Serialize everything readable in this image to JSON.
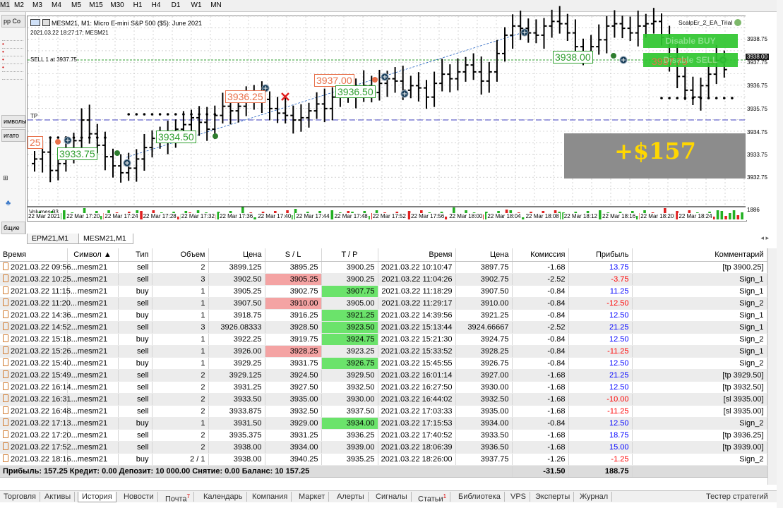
{
  "timeframes": [
    "M1",
    "M2",
    "M3",
    "M4",
    "M5",
    "M15",
    "M30",
    "H1",
    "H4",
    "D1",
    "W1",
    "MN"
  ],
  "active_timeframe": "M1",
  "left_panel": {
    "item1": "рр Со",
    "item2": "имволы",
    "item3": "игато",
    "item4": "бщие"
  },
  "chart": {
    "header": "MESM21, M1:  Micro E-mini S&P 500 ($5): June 2021",
    "datetime_line": "2021.03.22 18:27:17; MESM21",
    "sell_line_label": "SELL 1 at 3937.75",
    "tp_label": "TP",
    "ea_label": "ScalpEr_2_EA_Trial",
    "disable_buy_label": "Disable BUY",
    "disable_sell_label": "Disable SELL",
    "profit_overlay": "+$157",
    "volumes_label": "Volumes 93",
    "volume_max_label": "1886",
    "price_labels": [
      "3938.75",
      "3937.75",
      "3936.75",
      "3935.75",
      "3934.75",
      "3933.75",
      "3932.75"
    ],
    "current_price": "3938.00",
    "time_labels": [
      "22 Mar 2021",
      "22 Mar 17:20",
      "22 Mar 17:24",
      "22 Mar 17:28",
      "22 Mar 17:32",
      "22 Mar 17:36",
      "22 Mar 17:40",
      "22 Mar 17:44",
      "22 Mar 17:48",
      "22 Mar 17:52",
      "22 Mar 17:56",
      "22 Mar 18:00",
      "22 Mar 18:04",
      "22 Mar 18:08",
      "22 Mar 18:12",
      "22 Mar 18:16",
      "22 Mar 18:20",
      "22 Mar 18:24"
    ],
    "trade_labels": [
      {
        "text": "25",
        "color": "red"
      },
      {
        "text": "3933.75",
        "color": "green"
      },
      {
        "text": "3934.50",
        "color": "green"
      },
      {
        "text": "3936.25",
        "color": "red"
      },
      {
        "text": "3937.00",
        "color": "red"
      },
      {
        "text": "3936.50",
        "color": "green"
      },
      {
        "text": "3938.00",
        "color": "green"
      },
      {
        "text": "3937.75",
        "color": "red"
      }
    ]
  },
  "chart_tabs": [
    "EPM21,M1",
    "MESM21,M1"
  ],
  "active_chart_tab": "MESM21,M1",
  "history": {
    "columns": [
      "Время",
      "Символ",
      "Тип",
      "Объем",
      "Цена",
      "S / L",
      "T / P",
      "Время",
      "Цена",
      "Комиссия",
      "Прибыль",
      "Комментарий"
    ],
    "rows": [
      {
        "open_time": "2021.03.22 09:56...",
        "symbol": "mesm21",
        "type": "sell",
        "volume": "2",
        "price": "3899.125",
        "sl": "3895.25",
        "tp": "3900.25",
        "close_time": "2021.03.22 10:10:47",
        "close_price": "3897.75",
        "commission": "-1.68",
        "profit": "13.75",
        "comment": "[tp 3900.25]",
        "hit": ""
      },
      {
        "open_time": "2021.03.22 10:25...",
        "symbol": "mesm21",
        "type": "sell",
        "volume": "3",
        "price": "3902.50",
        "sl": "3905.25",
        "tp": "3900.25",
        "close_time": "2021.03.22 11:04:26",
        "close_price": "3902.75",
        "commission": "-2.52",
        "profit": "-3.75",
        "comment": "Sign_1",
        "hit": "sl"
      },
      {
        "open_time": "2021.03.22 11:15...",
        "symbol": "mesm21",
        "type": "buy",
        "volume": "1",
        "price": "3905.25",
        "sl": "3902.75",
        "tp": "3907.75",
        "close_time": "2021.03.22 11:18:29",
        "close_price": "3907.50",
        "commission": "-0.84",
        "profit": "11.25",
        "comment": "Sign_1",
        "hit": "tp"
      },
      {
        "open_time": "2021.03.22 11:20...",
        "symbol": "mesm21",
        "type": "sell",
        "volume": "1",
        "price": "3907.50",
        "sl": "3910.00",
        "tp": "3905.00",
        "close_time": "2021.03.22 11:29:17",
        "close_price": "3910.00",
        "commission": "-0.84",
        "profit": "-12.50",
        "comment": "Sign_2",
        "hit": "sl"
      },
      {
        "open_time": "2021.03.22 14:36...",
        "symbol": "mesm21",
        "type": "buy",
        "volume": "1",
        "price": "3918.75",
        "sl": "3916.25",
        "tp": "3921.25",
        "close_time": "2021.03.22 14:39:56",
        "close_price": "3921.25",
        "commission": "-0.84",
        "profit": "12.50",
        "comment": "Sign_1",
        "hit": "tp"
      },
      {
        "open_time": "2021.03.22 14:52...",
        "symbol": "mesm21",
        "type": "sell",
        "volume": "3",
        "price": "3926.08333",
        "sl": "3928.50",
        "tp": "3923.50",
        "close_time": "2021.03.22 15:13:44",
        "close_price": "3924.66667",
        "commission": "-2.52",
        "profit": "21.25",
        "comment": "Sign_1",
        "hit": "tp"
      },
      {
        "open_time": "2021.03.22 15:18...",
        "symbol": "mesm21",
        "type": "buy",
        "volume": "1",
        "price": "3922.25",
        "sl": "3919.75",
        "tp": "3924.75",
        "close_time": "2021.03.22 15:21:30",
        "close_price": "3924.75",
        "commission": "-0.84",
        "profit": "12.50",
        "comment": "Sign_2",
        "hit": "tp"
      },
      {
        "open_time": "2021.03.22 15:26...",
        "symbol": "mesm21",
        "type": "sell",
        "volume": "1",
        "price": "3926.00",
        "sl": "3928.25",
        "tp": "3923.25",
        "close_time": "2021.03.22 15:33:52",
        "close_price": "3928.25",
        "commission": "-0.84",
        "profit": "-11.25",
        "comment": "Sign_1",
        "hit": "sl"
      },
      {
        "open_time": "2021.03.22 15:40...",
        "symbol": "mesm21",
        "type": "buy",
        "volume": "1",
        "price": "3929.25",
        "sl": "3931.75",
        "tp": "3926.75",
        "close_time": "2021.03.22 15:45:55",
        "close_price": "3926.75",
        "commission": "-0.84",
        "profit": "12.50",
        "comment": "Sign_2",
        "hit": "tp"
      },
      {
        "open_time": "2021.03.22 15:49...",
        "symbol": "mesm21",
        "type": "sell",
        "volume": "2",
        "price": "3929.125",
        "sl": "3924.50",
        "tp": "3929.50",
        "close_time": "2021.03.22 16:01:14",
        "close_price": "3927.00",
        "commission": "-1.68",
        "profit": "21.25",
        "comment": "[tp 3929.50]",
        "hit": ""
      },
      {
        "open_time": "2021.03.22 16:14...",
        "symbol": "mesm21",
        "type": "sell",
        "volume": "2",
        "price": "3931.25",
        "sl": "3927.50",
        "tp": "3932.50",
        "close_time": "2021.03.22 16:27:50",
        "close_price": "3930.00",
        "commission": "-1.68",
        "profit": "12.50",
        "comment": "[tp 3932.50]",
        "hit": ""
      },
      {
        "open_time": "2021.03.22 16:31...",
        "symbol": "mesm21",
        "type": "sell",
        "volume": "2",
        "price": "3933.50",
        "sl": "3935.00",
        "tp": "3930.00",
        "close_time": "2021.03.22 16:44:02",
        "close_price": "3932.50",
        "commission": "-1.68",
        "profit": "-10.00",
        "comment": "[sl 3935.00]",
        "hit": ""
      },
      {
        "open_time": "2021.03.22 16:48...",
        "symbol": "mesm21",
        "type": "sell",
        "volume": "2",
        "price": "3933.875",
        "sl": "3932.50",
        "tp": "3937.50",
        "close_time": "2021.03.22 17:03:33",
        "close_price": "3935.00",
        "commission": "-1.68",
        "profit": "-11.25",
        "comment": "[sl 3935.00]",
        "hit": ""
      },
      {
        "open_time": "2021.03.22 17:13...",
        "symbol": "mesm21",
        "type": "buy",
        "volume": "1",
        "price": "3931.50",
        "sl": "3929.00",
        "tp": "3934.00",
        "close_time": "2021.03.22 17:15:53",
        "close_price": "3934.00",
        "commission": "-0.84",
        "profit": "12.50",
        "comment": "Sign_2",
        "hit": "tp"
      },
      {
        "open_time": "2021.03.22 17:20...",
        "symbol": "mesm21",
        "type": "sell",
        "volume": "2",
        "price": "3935.375",
        "sl": "3931.25",
        "tp": "3936.25",
        "close_time": "2021.03.22 17:40:52",
        "close_price": "3933.50",
        "commission": "-1.68",
        "profit": "18.75",
        "comment": "[tp 3936.25]",
        "hit": ""
      },
      {
        "open_time": "2021.03.22 17:52...",
        "symbol": "mesm21",
        "type": "sell",
        "volume": "2",
        "price": "3938.00",
        "sl": "3934.00",
        "tp": "3939.00",
        "close_time": "2021.03.22 18:06:39",
        "close_price": "3936.50",
        "commission": "-1.68",
        "profit": "15.00",
        "comment": "[tp 3939.00]",
        "hit": ""
      },
      {
        "open_time": "2021.03.22 18:16...",
        "symbol": "mesm21",
        "type": "buy",
        "volume": "2 / 1",
        "price": "3938.00",
        "sl": "3940.25",
        "tp": "3935.25",
        "close_time": "2021.03.22 18:26:00",
        "close_price": "3937.75",
        "commission": "-1.26",
        "profit": "-1.25",
        "comment": "Sign_2",
        "hit": ""
      }
    ],
    "summary": {
      "text": "Прибыль: 157.25  Кредит: 0.00  Депозит: 10 000.00  Снятие: 0.00  Баланс: 10 157.25",
      "commission": "-31.50",
      "profit": "188.75"
    }
  },
  "bottom_tabs": [
    "Торговля",
    "Активы",
    "История",
    "Новости",
    "Почта",
    "Календарь",
    "Компания",
    "Маркет",
    "Алерты",
    "Сигналы",
    "Статьи",
    "Библиотека",
    "VPS",
    "Эксперты",
    "Журнал"
  ],
  "active_bottom_tab": "История",
  "bottom_badges": {
    "mail": "7",
    "articles": "1"
  },
  "strategy_tester_label": "Тестер стратегий",
  "colors": {
    "sl_hit": "#f4a3a3",
    "tp_hit": "#6be36b",
    "profit_pos": "#0000ff",
    "profit_neg": "#ff0000",
    "profit_overlay": "#ffd700",
    "disable_button": "#2fc62f"
  }
}
